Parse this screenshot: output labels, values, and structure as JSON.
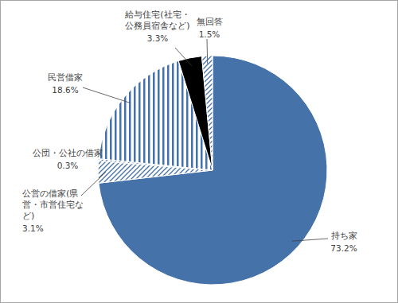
{
  "chart_data": {
    "type": "pie",
    "categories": [
      "持ち家",
      "公営の借家(県営・市営住宅など)",
      "公団・公社の借家",
      "民営借家",
      "給与住宅(社宅・公務員宿舎など)",
      "無回答"
    ],
    "values": [
      73.2,
      3.1,
      0.3,
      18.6,
      3.3,
      1.5
    ],
    "value_labels": [
      "73.2%",
      "3.1%",
      "0.3%",
      "18.6%",
      "3.3%",
      "1.5%"
    ],
    "colors": [
      "#4672aa",
      "#4672aa",
      "#4672aa",
      "#4672aa",
      "#000000",
      "#4672aa"
    ],
    "data_labels": true
  }
}
